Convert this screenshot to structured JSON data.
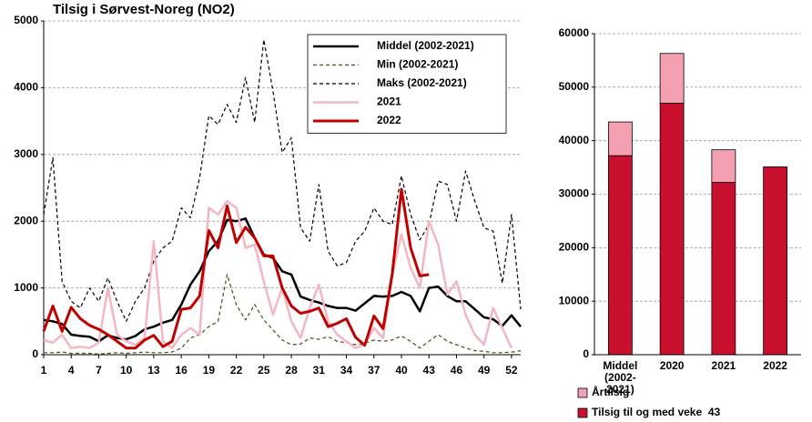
{
  "chart_data": [
    {
      "type": "line",
      "title": "Tilsig i Sørvest-Noreg (NO2)",
      "x": [
        1,
        2,
        3,
        4,
        5,
        6,
        7,
        8,
        9,
        10,
        11,
        12,
        13,
        14,
        15,
        16,
        17,
        18,
        19,
        20,
        21,
        22,
        23,
        24,
        25,
        26,
        27,
        28,
        29,
        30,
        31,
        32,
        33,
        34,
        35,
        36,
        37,
        38,
        39,
        40,
        41,
        42,
        43,
        44,
        45,
        46,
        47,
        48,
        49,
        50,
        51,
        52,
        53
      ],
      "xlim": [
        1,
        53
      ],
      "xticks": [
        1,
        4,
        7,
        10,
        13,
        16,
        19,
        22,
        25,
        28,
        31,
        34,
        37,
        40,
        43,
        46,
        49,
        52
      ],
      "ylim": [
        0,
        5000
      ],
      "yticks": [
        0,
        1000,
        2000,
        3000,
        4000,
        5000
      ],
      "grid": true,
      "legend": "upper right",
      "series": [
        {
          "name": "Middel (2002-2021)",
          "color": "#000000",
          "line_style": "solid",
          "line_width": 2.5,
          "values": [
            520,
            500,
            460,
            300,
            280,
            270,
            200,
            290,
            250,
            230,
            280,
            380,
            420,
            480,
            520,
            750,
            1050,
            1250,
            1550,
            1700,
            2020,
            2000,
            2040,
            1750,
            1500,
            1450,
            1250,
            1200,
            870,
            820,
            780,
            730,
            700,
            700,
            660,
            770,
            880,
            870,
            880,
            940,
            880,
            650,
            1000,
            1020,
            880,
            800,
            800,
            680,
            560,
            530,
            430,
            590,
            420
          ]
        },
        {
          "name": "Min (2002-2021)",
          "color": "#4d4d1a",
          "line_style": "dashed",
          "line_width": 1.2,
          "values": [
            30,
            30,
            40,
            20,
            20,
            20,
            10,
            20,
            30,
            20,
            30,
            40,
            30,
            30,
            40,
            100,
            250,
            300,
            420,
            500,
            1200,
            750,
            520,
            750,
            520,
            370,
            220,
            150,
            160,
            250,
            230,
            270,
            200,
            180,
            150,
            170,
            220,
            200,
            220,
            280,
            200,
            100,
            200,
            300,
            200,
            150,
            100,
            60,
            50,
            30,
            30,
            40,
            60
          ]
        },
        {
          "name": "Maks (2002-2021)",
          "color": "#000000",
          "line_style": "dashed",
          "line_width": 1.2,
          "values": [
            2100,
            2950,
            1100,
            800,
            700,
            1000,
            800,
            1150,
            800,
            500,
            800,
            1000,
            1400,
            1600,
            1700,
            2200,
            2050,
            2650,
            3580,
            3450,
            3750,
            3480,
            4150,
            3480,
            4720,
            3950,
            3030,
            3250,
            1900,
            1700,
            2550,
            1550,
            1330,
            1380,
            1700,
            1850,
            2200,
            2000,
            1950,
            2680,
            2100,
            1720,
            1950,
            2600,
            2550,
            2000,
            2750,
            2300,
            1900,
            1850,
            1070,
            2100,
            680
          ]
        },
        {
          "name": "2021",
          "color": "#f4b6c2",
          "line_style": "solid",
          "line_width": 2.5,
          "values": [
            220,
            180,
            300,
            100,
            120,
            100,
            180,
            1000,
            300,
            200,
            150,
            250,
            1700,
            200,
            100,
            300,
            400,
            300,
            2200,
            2100,
            2300,
            2200,
            1600,
            1650,
            1100,
            600,
            1000,
            500,
            250,
            700,
            1050,
            500,
            300,
            200,
            100,
            150,
            400,
            250,
            1200,
            1800,
            1300,
            1000,
            2000,
            1650,
            900,
            1100,
            600,
            300,
            150,
            700,
            400,
            100,
            null
          ]
        },
        {
          "name": "2022",
          "color": "#c00000",
          "line_style": "solid",
          "line_width": 3,
          "values": [
            350,
            730,
            350,
            710,
            540,
            440,
            380,
            300,
            200,
            100,
            100,
            220,
            290,
            120,
            200,
            680,
            700,
            880,
            1860,
            1600,
            2230,
            1680,
            1910,
            1750,
            1480,
            1480,
            1000,
            730,
            620,
            650,
            700,
            420,
            470,
            540,
            260,
            140,
            580,
            390,
            1210,
            2480,
            1600,
            1180,
            1200,
            null,
            null,
            null,
            null,
            null,
            null,
            null,
            null,
            null,
            null
          ]
        }
      ]
    },
    {
      "type": "bar",
      "stacked": true,
      "categories": [
        "Middel (2002-2021)",
        "2020",
        "2021",
        "2022"
      ],
      "ylim": [
        0,
        60000
      ],
      "yticks": [
        0,
        10000,
        20000,
        30000,
        40000,
        50000,
        60000
      ],
      "grid": true,
      "legend": "bottom",
      "series": [
        {
          "name": "Tilsig til og med veke  43",
          "color": "#c8102e",
          "values": [
            37200,
            47000,
            32200,
            35100
          ]
        },
        {
          "name": "Årtilsig",
          "color": "#f4a0b0",
          "values": [
            6300,
            9300,
            6100,
            null
          ]
        }
      ]
    }
  ]
}
